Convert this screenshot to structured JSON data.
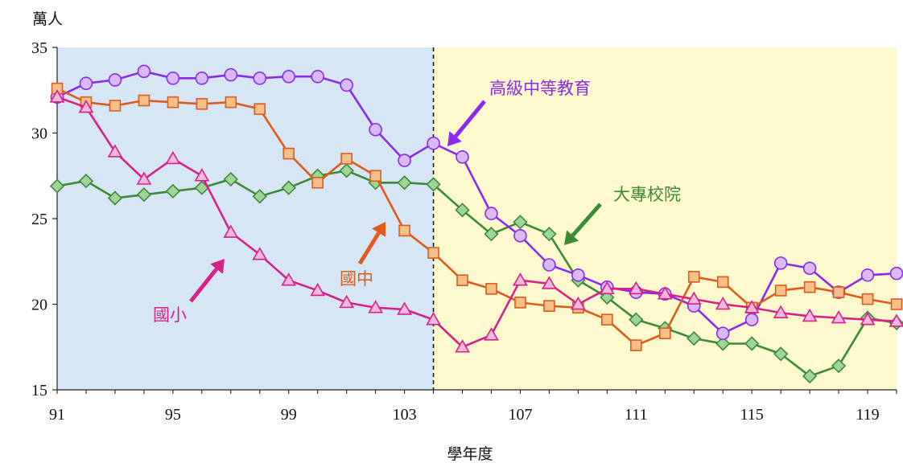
{
  "chart_data": {
    "type": "line",
    "title": "",
    "ylabel": "萬人",
    "xlabel": "學年度",
    "ylim": [
      15,
      35
    ],
    "xlim": [
      91,
      120
    ],
    "y_ticks": [
      15,
      20,
      25,
      30,
      35
    ],
    "x_ticks": [
      91,
      95,
      99,
      103,
      107,
      111,
      115,
      119
    ],
    "divider_x": 104,
    "background_regions": [
      {
        "from": 91,
        "to": 104,
        "color": "#d6e6f5"
      },
      {
        "from": 104,
        "to": 120,
        "color": "#fdf9cc"
      }
    ],
    "x": [
      91,
      92,
      93,
      94,
      95,
      96,
      97,
      98,
      99,
      100,
      101,
      102,
      103,
      104,
      105,
      106,
      107,
      108,
      109,
      110,
      111,
      112,
      113,
      114,
      115,
      116,
      117,
      118,
      119,
      120
    ],
    "series": [
      {
        "name": "國小",
        "color": "#d6218a",
        "fill": "#f4b8dd",
        "marker": "triangle",
        "values": [
          32.1,
          31.5,
          28.9,
          27.3,
          28.5,
          27.5,
          24.2,
          22.9,
          21.4,
          20.8,
          20.1,
          19.8,
          19.7,
          19.1,
          17.5,
          18.2,
          21.4,
          21.2,
          20.0,
          20.9,
          20.9,
          20.6,
          20.3,
          20.0,
          19.8,
          19.5,
          19.3,
          19.2,
          19.1,
          19.0
        ]
      },
      {
        "name": "國中",
        "color": "#e05a1a",
        "fill": "#f7c089",
        "marker": "square",
        "values": [
          32.6,
          31.8,
          31.6,
          31.9,
          31.8,
          31.7,
          31.8,
          31.4,
          28.8,
          27.1,
          28.5,
          27.5,
          24.3,
          23.0,
          21.4,
          20.9,
          20.1,
          19.9,
          19.8,
          19.1,
          17.6,
          18.3,
          21.6,
          21.3,
          19.8,
          20.8,
          21.0,
          20.7,
          20.3,
          20.0
        ]
      },
      {
        "name": "高級中等教育",
        "color": "#8a2be8",
        "fill": "#d9b9f7",
        "marker": "circle",
        "values": [
          32.1,
          32.9,
          33.1,
          33.6,
          33.2,
          33.2,
          33.4,
          33.2,
          33.3,
          33.3,
          32.8,
          30.2,
          28.4,
          29.4,
          28.6,
          25.3,
          24.0,
          22.3,
          21.7,
          21.0,
          20.7,
          20.6,
          19.9,
          18.3,
          19.1,
          22.4,
          22.1,
          20.7,
          21.7,
          21.8
        ]
      },
      {
        "name": "大專校院",
        "color": "#3c8a36",
        "fill": "#9fd59a",
        "marker": "diamond",
        "values": [
          26.9,
          27.2,
          26.2,
          26.4,
          26.6,
          26.8,
          27.3,
          26.3,
          26.8,
          27.5,
          27.8,
          27.1,
          27.1,
          27.0,
          25.5,
          24.1,
          24.8,
          24.1,
          21.4,
          20.4,
          19.1,
          18.6,
          18.0,
          17.7,
          17.7,
          17.1,
          15.8,
          16.4,
          19.2,
          18.9
        ]
      }
    ],
    "annotations": [
      {
        "text": "高級中等教育",
        "series": "高級中等教育"
      },
      {
        "text": "大專校院",
        "series": "大專校院"
      },
      {
        "text": "國中",
        "series": "國中"
      },
      {
        "text": "國小",
        "series": "國小"
      }
    ]
  }
}
